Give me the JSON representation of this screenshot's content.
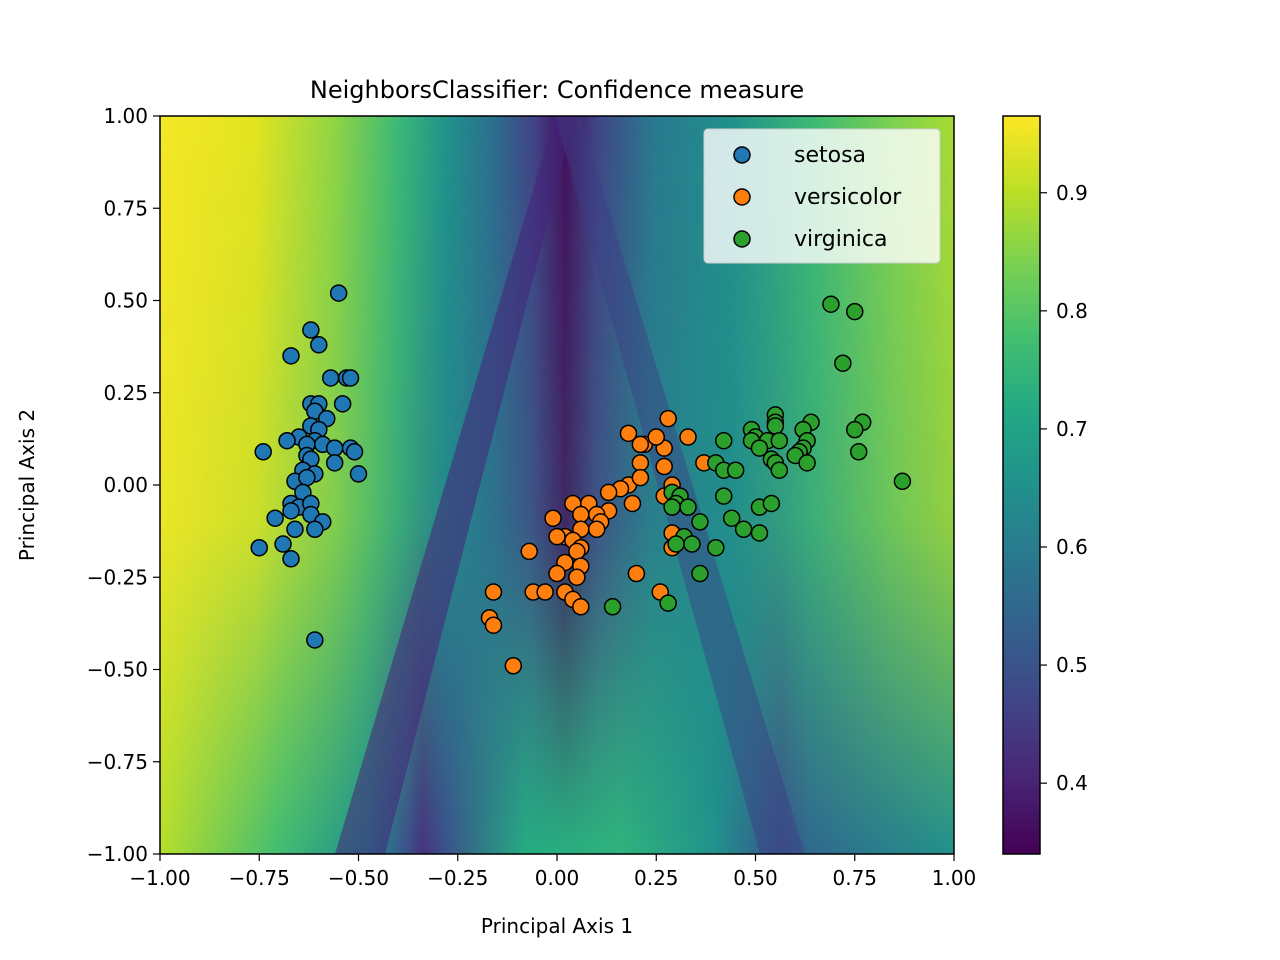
{
  "chart_data": {
    "type": "scatter",
    "title": "NeighborsClassifier: Confidence measure",
    "xlabel": "Principal Axis 1",
    "ylabel": "Principal Axis 2",
    "xlim": [
      -1.0,
      1.0
    ],
    "ylim": [
      -1.0,
      1.0
    ],
    "xticks": [
      -1.0,
      -0.75,
      -0.5,
      -0.25,
      0.0,
      0.25,
      0.5,
      0.75,
      1.0
    ],
    "yticks": [
      -1.0,
      -0.75,
      -0.5,
      -0.25,
      0.0,
      0.25,
      0.5,
      0.75,
      1.0
    ],
    "xtick_labels": [
      "−1.00",
      "−0.75",
      "−0.50",
      "−0.25",
      "0.00",
      "0.25",
      "0.50",
      "0.75",
      "1.00"
    ],
    "ytick_labels": [
      "−1.00",
      "−0.75",
      "−0.50",
      "−0.25",
      "0.00",
      "0.25",
      "0.50",
      "0.75",
      "1.00"
    ],
    "grid": false,
    "legend_position": "top-right",
    "background": {
      "type": "heatmap",
      "colormap": "viridis",
      "description_values": "confidence"
    },
    "colorbar": {
      "range": [
        0.34,
        0.965
      ],
      "ticks": [
        0.4,
        0.5,
        0.6,
        0.7,
        0.8,
        0.9
      ],
      "tick_labels": [
        "0.4",
        "0.5",
        "0.6",
        "0.7",
        "0.8",
        "0.9"
      ]
    },
    "series": [
      {
        "name": "setosa",
        "color": "#1f77b4",
        "points": [
          [
            -0.55,
            0.52
          ],
          [
            -0.62,
            0.42
          ],
          [
            -0.67,
            0.35
          ],
          [
            -0.6,
            0.38
          ],
          [
            -0.57,
            0.29
          ],
          [
            -0.53,
            0.29
          ],
          [
            -0.52,
            0.29
          ],
          [
            -0.62,
            0.22
          ],
          [
            -0.6,
            0.22
          ],
          [
            -0.61,
            0.2
          ],
          [
            -0.54,
            0.22
          ],
          [
            -0.58,
            0.18
          ],
          [
            -0.62,
            0.16
          ],
          [
            -0.6,
            0.15
          ],
          [
            -0.65,
            0.13
          ],
          [
            -0.68,
            0.12
          ],
          [
            -0.61,
            0.12
          ],
          [
            -0.63,
            0.11
          ],
          [
            -0.59,
            0.11
          ],
          [
            -0.56,
            0.1
          ],
          [
            -0.52,
            0.1
          ],
          [
            -0.51,
            0.09
          ],
          [
            -0.74,
            0.09
          ],
          [
            -0.63,
            0.08
          ],
          [
            -0.62,
            0.07
          ],
          [
            -0.56,
            0.06
          ],
          [
            -0.64,
            0.04
          ],
          [
            -0.61,
            0.03
          ],
          [
            -0.5,
            0.03
          ],
          [
            -0.66,
            0.01
          ],
          [
            -0.63,
            0.02
          ],
          [
            -0.64,
            -0.02
          ],
          [
            -0.67,
            -0.05
          ],
          [
            -0.65,
            -0.06
          ],
          [
            -0.62,
            -0.05
          ],
          [
            -0.67,
            -0.07
          ],
          [
            -0.62,
            -0.08
          ],
          [
            -0.71,
            -0.09
          ],
          [
            -0.59,
            -0.1
          ],
          [
            -0.66,
            -0.12
          ],
          [
            -0.61,
            -0.12
          ],
          [
            -0.75,
            -0.17
          ],
          [
            -0.69,
            -0.16
          ],
          [
            -0.67,
            -0.2
          ],
          [
            -0.61,
            -0.42
          ]
        ]
      },
      {
        "name": "versicolor",
        "color": "#ff7f0e",
        "points": [
          [
            0.28,
            0.18
          ],
          [
            0.27,
            0.1
          ],
          [
            0.18,
            0.14
          ],
          [
            0.22,
            0.11
          ],
          [
            0.25,
            0.13
          ],
          [
            0.21,
            0.11
          ],
          [
            0.33,
            0.13
          ],
          [
            0.21,
            0.06
          ],
          [
            0.27,
            0.05
          ],
          [
            0.29,
            0.0
          ],
          [
            0.37,
            0.06
          ],
          [
            0.18,
            0.0
          ],
          [
            0.16,
            -0.01
          ],
          [
            0.21,
            0.02
          ],
          [
            0.13,
            -0.02
          ],
          [
            0.04,
            -0.05
          ],
          [
            0.08,
            -0.05
          ],
          [
            0.19,
            -0.05
          ],
          [
            0.27,
            -0.03
          ],
          [
            0.13,
            -0.07
          ],
          [
            0.1,
            -0.08
          ],
          [
            0.11,
            -0.1
          ],
          [
            0.06,
            -0.08
          ],
          [
            -0.01,
            -0.09
          ],
          [
            0.06,
            -0.12
          ],
          [
            0.1,
            -0.12
          ],
          [
            0.29,
            -0.13
          ],
          [
            0.02,
            -0.14
          ],
          [
            0.04,
            -0.15
          ],
          [
            -0.0,
            -0.14
          ],
          [
            0.06,
            -0.17
          ],
          [
            0.05,
            -0.18
          ],
          [
            0.29,
            -0.17
          ],
          [
            -0.07,
            -0.18
          ],
          [
            0.02,
            -0.21
          ],
          [
            0.06,
            -0.22
          ],
          [
            0.0,
            -0.24
          ],
          [
            0.05,
            -0.25
          ],
          [
            0.2,
            -0.24
          ],
          [
            -0.06,
            -0.29
          ],
          [
            -0.03,
            -0.29
          ],
          [
            0.02,
            -0.29
          ],
          [
            -0.16,
            -0.29
          ],
          [
            0.26,
            -0.29
          ],
          [
            0.04,
            -0.31
          ],
          [
            0.06,
            -0.33
          ],
          [
            -0.17,
            -0.36
          ],
          [
            -0.16,
            -0.38
          ],
          [
            -0.11,
            -0.49
          ]
        ]
      },
      {
        "name": "virginica",
        "color": "#2ca02c",
        "points": [
          [
            0.69,
            0.49
          ],
          [
            0.75,
            0.47
          ],
          [
            0.72,
            0.33
          ],
          [
            0.55,
            0.19
          ],
          [
            0.64,
            0.17
          ],
          [
            0.77,
            0.17
          ],
          [
            0.55,
            0.17
          ],
          [
            0.55,
            0.16
          ],
          [
            0.49,
            0.15
          ],
          [
            0.62,
            0.15
          ],
          [
            0.75,
            0.15
          ],
          [
            0.5,
            0.13
          ],
          [
            0.53,
            0.12
          ],
          [
            0.56,
            0.12
          ],
          [
            0.42,
            0.12
          ],
          [
            0.49,
            0.12
          ],
          [
            0.63,
            0.12
          ],
          [
            0.51,
            0.1
          ],
          [
            0.62,
            0.1
          ],
          [
            0.61,
            0.09
          ],
          [
            0.76,
            0.09
          ],
          [
            0.6,
            0.08
          ],
          [
            0.54,
            0.07
          ],
          [
            0.55,
            0.06
          ],
          [
            0.63,
            0.06
          ],
          [
            0.4,
            0.06
          ],
          [
            0.42,
            0.04
          ],
          [
            0.45,
            0.04
          ],
          [
            0.56,
            0.04
          ],
          [
            0.87,
            0.01
          ],
          [
            0.29,
            -0.02
          ],
          [
            0.31,
            -0.03
          ],
          [
            0.42,
            -0.03
          ],
          [
            0.3,
            -0.05
          ],
          [
            0.33,
            -0.06
          ],
          [
            0.29,
            -0.06
          ],
          [
            0.51,
            -0.06
          ],
          [
            0.54,
            -0.05
          ],
          [
            0.44,
            -0.09
          ],
          [
            0.36,
            -0.1
          ],
          [
            0.47,
            -0.12
          ],
          [
            0.51,
            -0.13
          ],
          [
            0.32,
            -0.14
          ],
          [
            0.34,
            -0.16
          ],
          [
            0.3,
            -0.16
          ],
          [
            0.4,
            -0.17
          ],
          [
            0.36,
            -0.24
          ],
          [
            0.28,
            -0.32
          ],
          [
            0.14,
            -0.33
          ]
        ]
      }
    ]
  }
}
